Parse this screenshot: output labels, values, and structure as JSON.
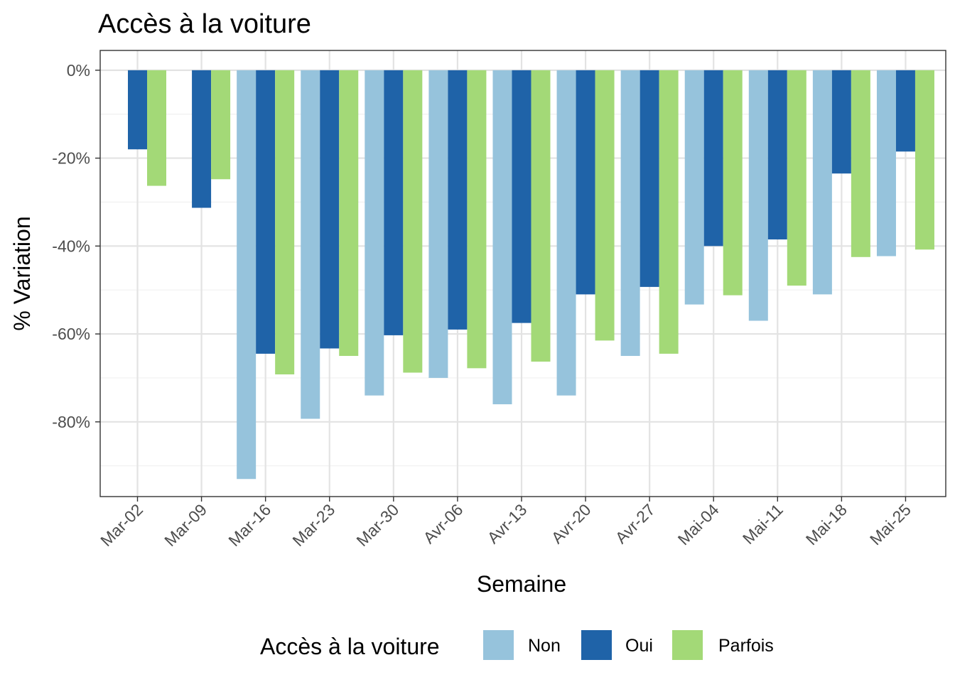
{
  "chart_data": {
    "type": "bar",
    "title": "Accès à la voiture",
    "xlabel": "Semaine",
    "ylabel": "% Variation",
    "legend_title": "Accès à la voiture",
    "legend_position": "bottom",
    "grid": true,
    "ylim": [
      -97,
      4.5
    ],
    "yticks": [
      0,
      -20,
      -40,
      -60,
      -80
    ],
    "ytick_labels": [
      "0%",
      "-20%",
      "-40%",
      "-60%",
      "-80%"
    ],
    "categories": [
      "Mar-02",
      "Mar-09",
      "Mar-16",
      "Mar-23",
      "Mar-30",
      "Avr-06",
      "Avr-13",
      "Avr-20",
      "Avr-27",
      "Mai-04",
      "Mai-11",
      "Mai-18",
      "Mai-25"
    ],
    "series": [
      {
        "name": "Non",
        "color": "#96c3dc",
        "values": [
          null,
          null,
          -93,
          -79.3,
          -74,
          -70,
          -76,
          -74,
          -65,
          -53.3,
          -57,
          -51,
          -42.3
        ]
      },
      {
        "name": "Oui",
        "color": "#1f63a8",
        "values": [
          -18,
          -31.3,
          -64.5,
          -63.3,
          -60.3,
          -59,
          -57.5,
          -51,
          -49.3,
          -40,
          -38.5,
          -23.5,
          -18.5
        ]
      },
      {
        "name": "Parfois",
        "color": "#a3d977",
        "values": [
          -26.3,
          -24.8,
          -69.2,
          -65,
          -68.8,
          -67.8,
          -66.3,
          -61.5,
          -64.5,
          -51.2,
          -49,
          -42.5,
          -40.8
        ]
      }
    ]
  }
}
